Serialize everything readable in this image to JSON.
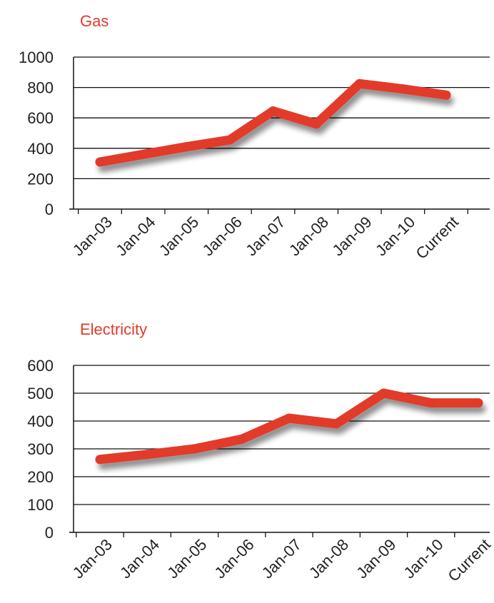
{
  "colors": {
    "series": "#e23a2a",
    "title": "#e23a2a",
    "axis": "#111111",
    "grid": "#111111",
    "text": "#222222"
  },
  "chart_data": [
    {
      "type": "line",
      "title": "Gas",
      "xlabel": "",
      "ylabel": "",
      "categories": [
        "Jan-03",
        "Jan-04",
        "Jan-05",
        "Jan-06",
        "Jan-07",
        "Jan-08",
        "Jan-09",
        "Jan-10",
        "Current"
      ],
      "series": [
        {
          "values": [
            310,
            360,
            410,
            455,
            645,
            560,
            825,
            790,
            750
          ]
        }
      ],
      "ylim": [
        0,
        1000
      ],
      "yticks": [
        0,
        200,
        400,
        600,
        800,
        1000
      ],
      "grid": true,
      "legend": "none"
    },
    {
      "type": "line",
      "title": "Electricity",
      "xlabel": "",
      "ylabel": "",
      "categories": [
        "Jan-03",
        "Jan-04",
        "Jan-05",
        "Jan-06",
        "Jan-07",
        "Jan-08",
        "Jan-09",
        "Jan-10",
        "Current"
      ],
      "series": [
        {
          "values": [
            262,
            280,
            300,
            335,
            410,
            390,
            500,
            465,
            465
          ]
        }
      ],
      "ylim": [
        0,
        600
      ],
      "yticks": [
        0,
        100,
        200,
        300,
        400,
        500,
        600
      ],
      "grid": true,
      "legend": "none"
    }
  ]
}
